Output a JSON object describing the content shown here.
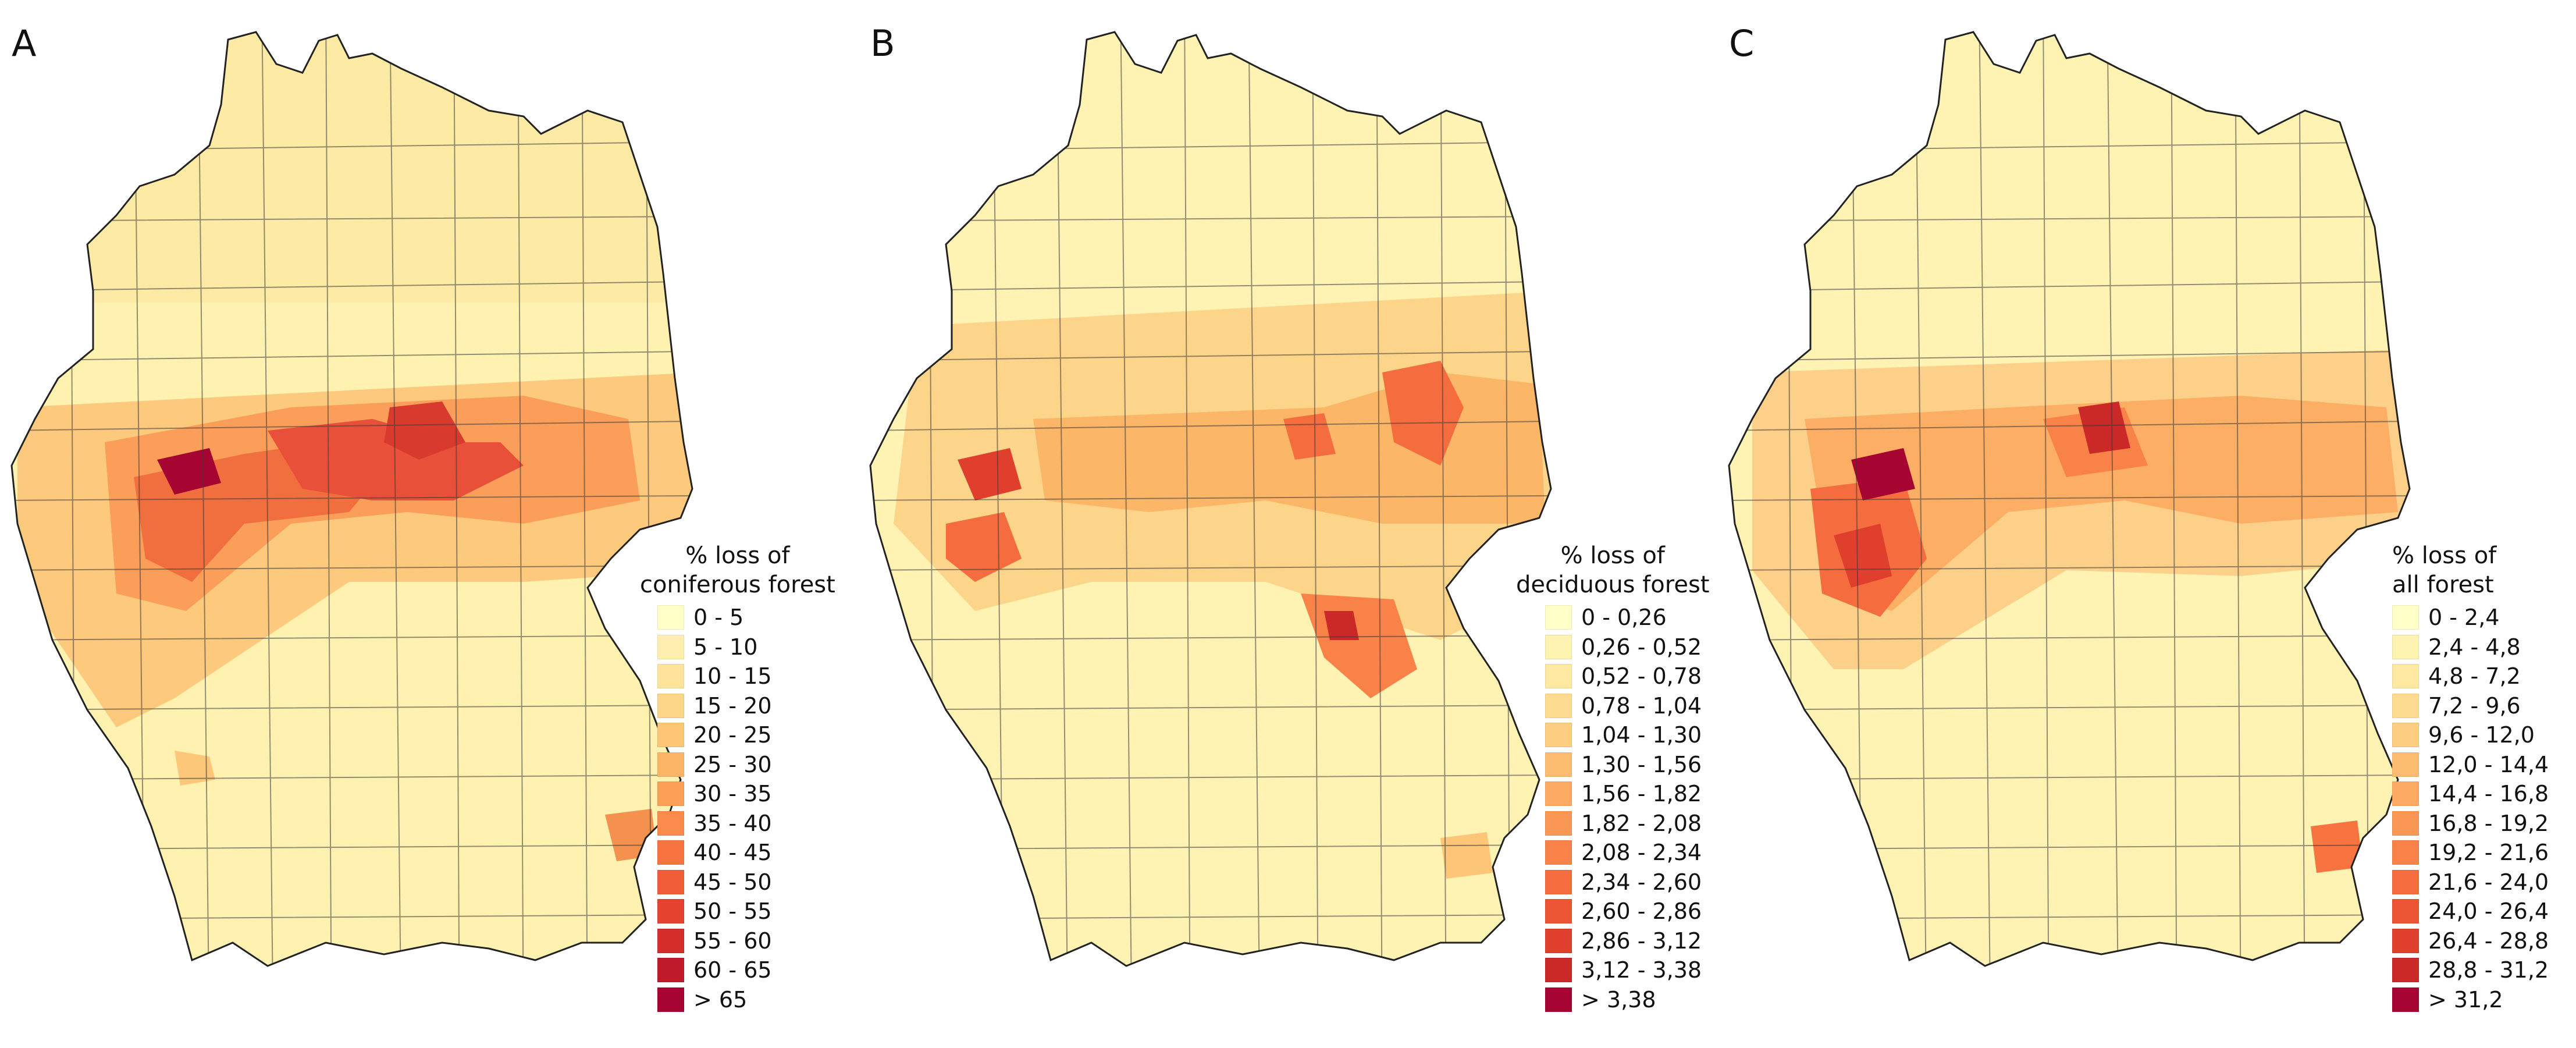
{
  "panels": [
    {
      "letter": "A",
      "legend_title": [
        "% loss of",
        "coniferous forest"
      ],
      "legend": [
        {
          "label": "0 - 5",
          "color": "#ffffc8"
        },
        {
          "label": "5 - 10",
          "color": "#ffefae"
        },
        {
          "label": "10 - 15",
          "color": "#fee39a"
        },
        {
          "label": "15 - 20",
          "color": "#fdd588"
        },
        {
          "label": "20 - 25",
          "color": "#fdc576"
        },
        {
          "label": "25 - 30",
          "color": "#fcb466"
        },
        {
          "label": "30 - 35",
          "color": "#fca058"
        },
        {
          "label": "35 - 40",
          "color": "#fb8b4c"
        },
        {
          "label": "40 - 45",
          "color": "#f77340"
        },
        {
          "label": "45 - 50",
          "color": "#f05c36"
        },
        {
          "label": "50 - 55",
          "color": "#e4432f"
        },
        {
          "label": "55 - 60",
          "color": "#d42d2a"
        },
        {
          "label": "60 - 65",
          "color": "#bf1a2a"
        },
        {
          "label": "> 65",
          "color": "#a50530"
        }
      ]
    },
    {
      "letter": "B",
      "legend_title": [
        "% loss of",
        "deciduous forest"
      ],
      "legend": [
        {
          "label": "0 - 0,26",
          "color": "#ffffc8"
        },
        {
          "label": "0,26 - 0,52",
          "color": "#fff3b2"
        },
        {
          "label": "0,52 - 0,78",
          "color": "#fee8a2"
        },
        {
          "label": "0,78 - 1,04",
          "color": "#fddb90"
        },
        {
          "label": "1,04 - 1,30",
          "color": "#fdcd80"
        },
        {
          "label": "1,30 - 1,56",
          "color": "#fcbc70"
        },
        {
          "label": "1,56 - 1,82",
          "color": "#fcaa62"
        },
        {
          "label": "1,82 - 2,08",
          "color": "#fb9754"
        },
        {
          "label": "2,08 - 2,34",
          "color": "#f98248"
        },
        {
          "label": "2,34 - 2,60",
          "color": "#f56c3e"
        },
        {
          "label": "2,60 - 2,86",
          "color": "#ec5534"
        },
        {
          "label": "2,86 - 3,12",
          "color": "#e03f2e"
        },
        {
          "label": "3,12 - 3,38",
          "color": "#cb2828"
        },
        {
          "label": "> 3,38",
          "color": "#a50530"
        }
      ]
    },
    {
      "letter": "C",
      "legend_title": [
        "% loss of",
        "all forest"
      ],
      "legend": [
        {
          "label": "0 - 2,4",
          "color": "#ffffc8"
        },
        {
          "label": "2,4 - 4,8",
          "color": "#fff3b2"
        },
        {
          "label": "4,8 - 7,2",
          "color": "#fee8a2"
        },
        {
          "label": "7,2 - 9,6",
          "color": "#fddb90"
        },
        {
          "label": "9,6 - 12,0",
          "color": "#fdcd80"
        },
        {
          "label": "12,0 - 14,4",
          "color": "#fcbc70"
        },
        {
          "label": "14,4 - 16,8",
          "color": "#fcaa62"
        },
        {
          "label": "16,8 - 19,2",
          "color": "#fb9754"
        },
        {
          "label": "19,2 - 21,6",
          "color": "#f98248"
        },
        {
          "label": "21,6 - 24,0",
          "color": "#f56c3e"
        },
        {
          "label": "24,0 - 26,4",
          "color": "#ec5534"
        },
        {
          "label": "26,4 - 28,8",
          "color": "#e03f2e"
        },
        {
          "label": "28,8 - 31,2",
          "color": "#cb2828"
        },
        {
          "label": "> 31,2",
          "color": "#a50530"
        }
      ]
    }
  ]
}
